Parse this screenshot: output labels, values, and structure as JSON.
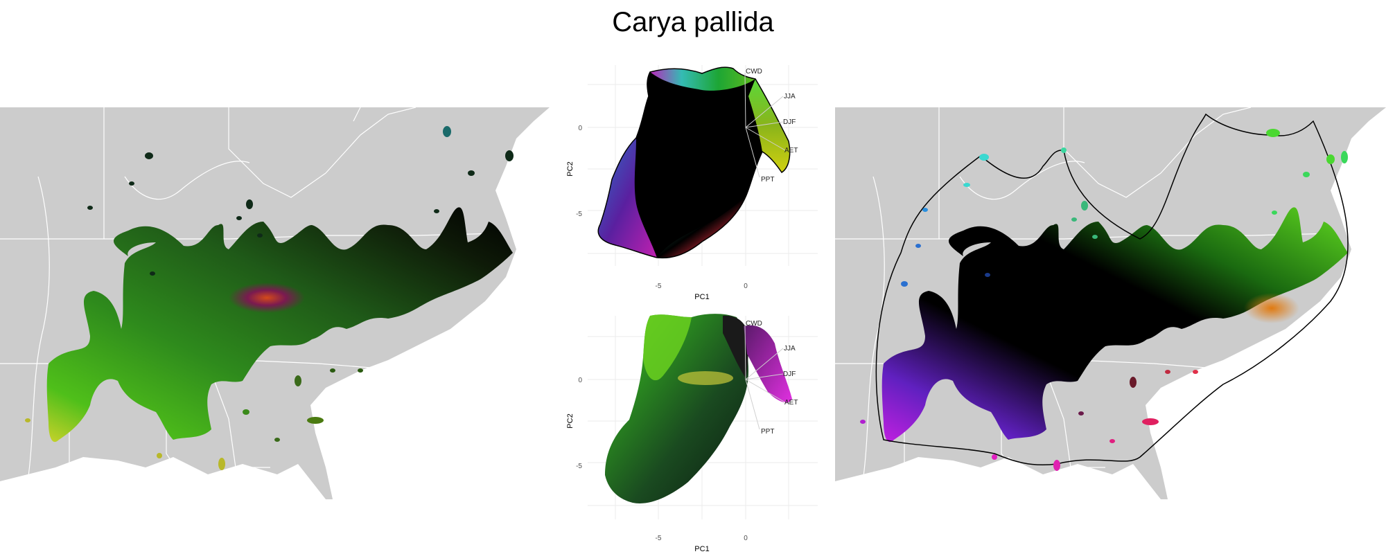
{
  "title": "Carya pallida",
  "pca": {
    "xlabel": "PC1",
    "ylabel": "PC2",
    "xticks": [
      "-5",
      "0"
    ],
    "yticks": [
      "0",
      "-5"
    ],
    "vectors": [
      "CWD",
      "JJA",
      "DJF",
      "AET",
      "PPT"
    ]
  },
  "colors": {
    "land": "#cccccc",
    "border": "#ffffff",
    "background": "#ffffff"
  }
}
